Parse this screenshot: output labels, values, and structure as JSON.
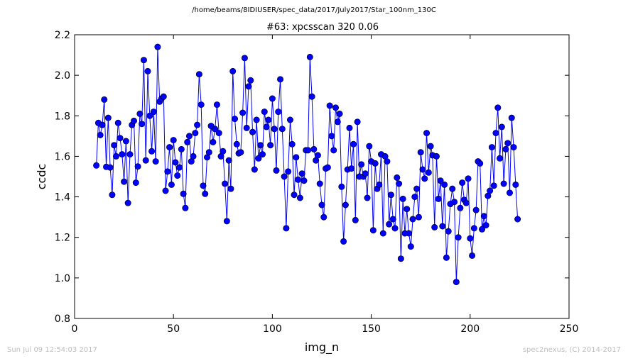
{
  "header": {
    "suptitle": "/home/beams/8IDIUSER/spec_data/2017/July2017/Star_100nm_130C"
  },
  "footer": {
    "timestamp": "Sun Jul 09 12:54:03 2017",
    "credit": "spec2nexus, (C) 2014-2017"
  },
  "chart_data": {
    "type": "line",
    "title": "#63: xpcsscan 320 0.06",
    "xlabel": "img_n",
    "ylabel": "ccdc",
    "xlim": [
      0,
      250
    ],
    "ylim": [
      0.8,
      2.2
    ],
    "xticks": [
      "0",
      "50",
      "100",
      "150",
      "200",
      "250"
    ],
    "yticks": [
      "0.8",
      "1.0",
      "1.2",
      "1.4",
      "1.6",
      "1.8",
      "2.0",
      "2.2"
    ],
    "grid": false,
    "series": [
      {
        "color": "#0000ff",
        "marker": "circle",
        "x_start": 11,
        "x_step": 1,
        "values": [
          1.555,
          1.765,
          1.705,
          1.755,
          1.88,
          1.548,
          1.79,
          1.545,
          1.41,
          1.655,
          1.6,
          1.765,
          1.69,
          1.61,
          1.475,
          1.675,
          1.37,
          1.61,
          1.755,
          1.775,
          1.47,
          1.55,
          1.81,
          1.76,
          2.075,
          1.58,
          2.02,
          1.8,
          1.625,
          1.82,
          1.575,
          2.14,
          1.87,
          1.885,
          1.895,
          1.43,
          1.525,
          1.645,
          1.46,
          1.68,
          1.57,
          1.505,
          1.545,
          1.635,
          1.415,
          1.345,
          1.67,
          1.7,
          1.575,
          1.6,
          1.715,
          1.755,
          2.005,
          1.855,
          1.455,
          1.415,
          1.595,
          1.62,
          1.75,
          1.67,
          1.735,
          1.855,
          1.715,
          1.6,
          1.625,
          1.465,
          1.28,
          1.58,
          1.44,
          2.02,
          1.785,
          1.66,
          1.615,
          1.62,
          1.815,
          2.085,
          1.74,
          1.945,
          1.975,
          1.72,
          1.535,
          1.78,
          1.59,
          1.655,
          1.61,
          1.82,
          1.745,
          1.78,
          1.655,
          1.885,
          1.735,
          1.53,
          1.82,
          1.98,
          1.735,
          1.5,
          1.245,
          1.525,
          1.78,
          1.66,
          1.41,
          1.595,
          1.485,
          1.395,
          1.515,
          1.48,
          1.63,
          1.63,
          2.09,
          1.895,
          1.635,
          1.58,
          1.605,
          1.465,
          1.36,
          1.3,
          1.54,
          1.545,
          1.85,
          1.7,
          1.63,
          1.84,
          1.77,
          1.81,
          1.45,
          1.18,
          1.36,
          1.535,
          1.74,
          1.54,
          1.66,
          1.285,
          1.77,
          1.5,
          1.56,
          1.5,
          1.515,
          1.395,
          1.65,
          1.575,
          1.235,
          1.565,
          1.44,
          1.46,
          1.61,
          1.22,
          1.6,
          1.575,
          1.265,
          1.41,
          1.29,
          1.245,
          1.495,
          1.465,
          1.095,
          1.39,
          1.22,
          1.34,
          1.22,
          1.155,
          1.29,
          1.4,
          1.44,
          1.3,
          1.62,
          1.535,
          1.49,
          1.715,
          1.52,
          1.65,
          1.605,
          1.25,
          1.6,
          1.39,
          1.48,
          1.255,
          1.46,
          1.1,
          1.23,
          1.365,
          1.44,
          1.375,
          0.98,
          1.2,
          1.345,
          1.47,
          1.385,
          1.37,
          1.49,
          1.195,
          1.11,
          1.245,
          1.335,
          1.575,
          1.565,
          1.24,
          1.305,
          1.26,
          1.405,
          1.43,
          1.645,
          1.455,
          1.715,
          1.84,
          1.59,
          1.745,
          1.465,
          1.635,
          1.665,
          1.42,
          1.79,
          1.645,
          1.46,
          1.29
        ]
      }
    ]
  }
}
